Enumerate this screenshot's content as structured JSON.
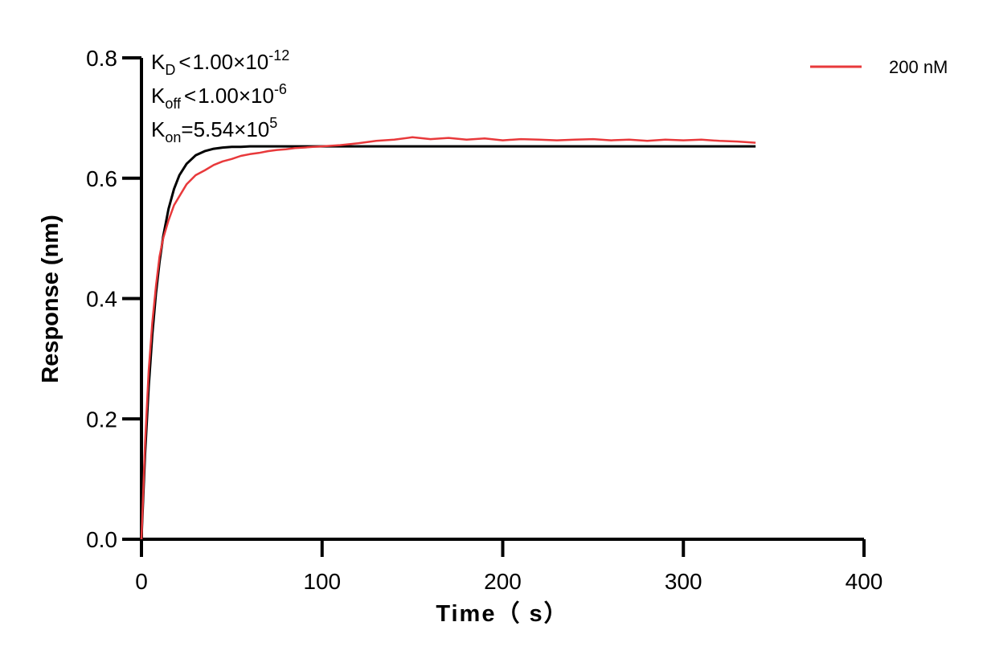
{
  "chart_data": {
    "type": "line",
    "title": "",
    "xlabel": "Time（ s）",
    "ylabel": "Response (nm)",
    "xlim": [
      0,
      400
    ],
    "ylim": [
      0,
      0.8
    ],
    "x_ticks": [
      "0",
      "100",
      "200",
      "300",
      "400"
    ],
    "y_ticks": [
      "0.0",
      "0.2",
      "0.4",
      "0.6",
      "0.8"
    ],
    "grid": false,
    "legend_position": "top-right",
    "annotations": {
      "kd": {
        "label": "K",
        "sub": "D",
        "rel": "<",
        "value": "1.00×10",
        "exp": "-12"
      },
      "koff": {
        "label": "K",
        "sub": "off",
        "rel": "<",
        "value": "1.00×10",
        "exp": "-6"
      },
      "kon": {
        "label": "K",
        "sub": "on",
        "rel": "=",
        "value": "5.54×10",
        "exp": "5"
      }
    },
    "series": [
      {
        "name": "200 nM",
        "color": "#e8393b",
        "x": [
          0,
          2,
          4,
          6,
          8,
          10,
          12,
          15,
          18,
          21,
          25,
          30,
          35,
          40,
          45,
          50,
          55,
          60,
          65,
          70,
          75,
          80,
          85,
          90,
          95,
          100,
          110,
          120,
          130,
          140,
          150,
          160,
          170,
          180,
          190,
          200,
          210,
          220,
          230,
          240,
          250,
          260,
          270,
          280,
          290,
          300,
          310,
          320,
          330,
          340
        ],
        "y": [
          0.0,
          0.16,
          0.28,
          0.36,
          0.42,
          0.47,
          0.5,
          0.53,
          0.555,
          0.57,
          0.59,
          0.605,
          0.613,
          0.622,
          0.628,
          0.632,
          0.637,
          0.64,
          0.642,
          0.645,
          0.647,
          0.648,
          0.65,
          0.651,
          0.652,
          0.653,
          0.655,
          0.658,
          0.662,
          0.664,
          0.668,
          0.665,
          0.667,
          0.664,
          0.666,
          0.663,
          0.665,
          0.664,
          0.663,
          0.664,
          0.665,
          0.663,
          0.664,
          0.662,
          0.664,
          0.663,
          0.664,
          0.662,
          0.661,
          0.659
        ]
      },
      {
        "name": "",
        "color": "#000000",
        "fit": true,
        "x": [
          0,
          2,
          4,
          6,
          8,
          10,
          12,
          15,
          18,
          21,
          25,
          30,
          35,
          40,
          45,
          50,
          55,
          60,
          70,
          80,
          90,
          100,
          120,
          150,
          200,
          250,
          300,
          340
        ],
        "y": [
          0.0,
          0.142,
          0.253,
          0.34,
          0.408,
          0.461,
          0.503,
          0.549,
          0.582,
          0.605,
          0.624,
          0.638,
          0.645,
          0.649,
          0.651,
          0.652,
          0.652,
          0.653,
          0.653,
          0.653,
          0.653,
          0.653,
          0.653,
          0.653,
          0.653,
          0.653,
          0.653,
          0.653
        ]
      }
    ]
  }
}
